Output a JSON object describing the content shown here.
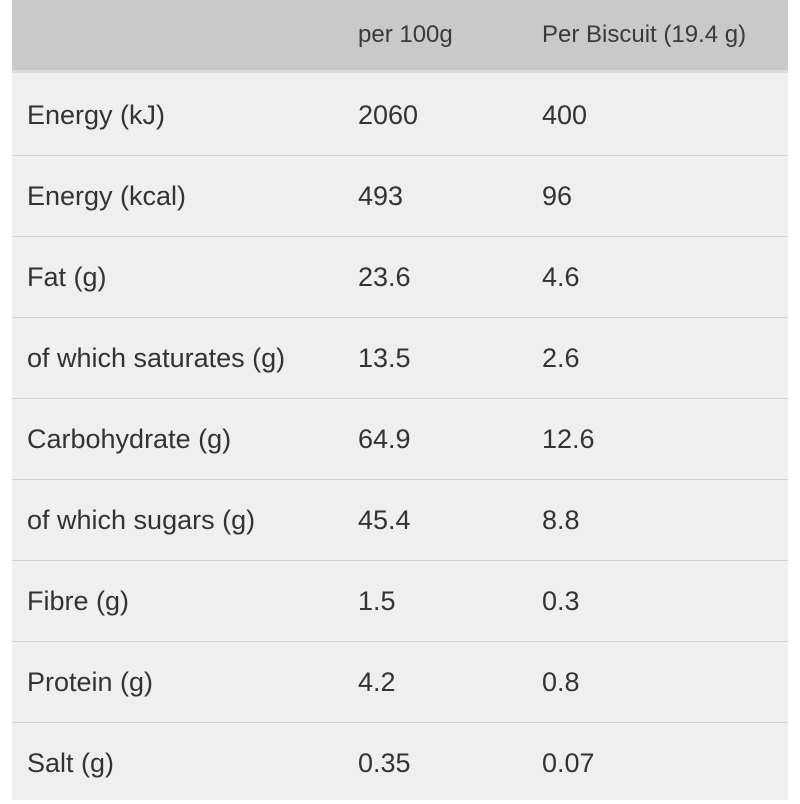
{
  "nutrition_table": {
    "headers": [
      "",
      "per 100g",
      "Per Biscuit (19.4 g)"
    ],
    "rows": [
      {
        "nutrient": "Energy (kJ)",
        "per_100g": "2060",
        "per_biscuit": "400"
      },
      {
        "nutrient": "Energy (kcal)",
        "per_100g": "493",
        "per_biscuit": "96"
      },
      {
        "nutrient": "Fat (g)",
        "per_100g": "23.6",
        "per_biscuit": "4.6"
      },
      {
        "nutrient": "of which saturates (g)",
        "per_100g": "13.5",
        "per_biscuit": "2.6"
      },
      {
        "nutrient": "Carbohydrate (g)",
        "per_100g": "64.9",
        "per_biscuit": "12.6"
      },
      {
        "nutrient": "of which sugars (g)",
        "per_100g": "45.4",
        "per_biscuit": "8.8"
      },
      {
        "nutrient": "Fibre (g)",
        "per_100g": "1.5",
        "per_biscuit": "0.3"
      },
      {
        "nutrient": "Protein (g)",
        "per_100g": "4.2",
        "per_biscuit": "0.8"
      },
      {
        "nutrient": "Salt (g)",
        "per_100g": "0.35",
        "per_biscuit": "0.07"
      }
    ]
  },
  "colors": {
    "header_background": "#c9c9c9",
    "row_background": "#efefef",
    "divider": "#d3d3d3",
    "text": "#333333"
  }
}
